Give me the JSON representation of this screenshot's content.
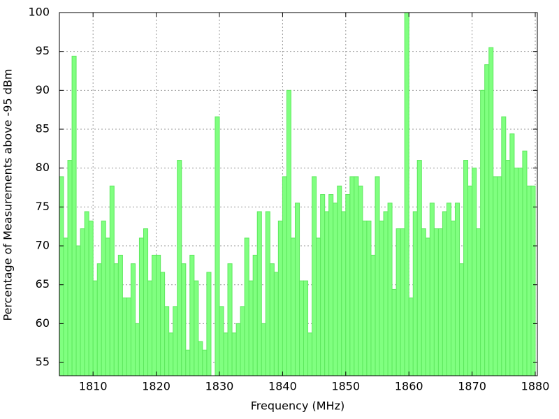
{
  "chart_data": {
    "type": "histogram",
    "xlabel": "Frequency (MHz)",
    "ylabel": "Percentage of Measurements above -95 dBm",
    "color": "#80ff80",
    "edgecolor": "#5ee85e",
    "grid": true,
    "xlim": [
      1804.67,
      1880.33
    ],
    "ylim": [
      53.3,
      100
    ],
    "xticks": [
      1810,
      1820,
      1830,
      1840,
      1850,
      1860,
      1870,
      1880
    ],
    "yticks": [
      55,
      60,
      65,
      70,
      75,
      80,
      85,
      90,
      95,
      100
    ],
    "bins": [
      1804.67,
      1805.33,
      1806,
      1806.67,
      1807.33,
      1808,
      1808.67,
      1809.33,
      1810,
      1810.67,
      1811.33,
      1812,
      1812.67,
      1813.33,
      1814,
      1814.67,
      1815.33,
      1816,
      1816.67,
      1817.33,
      1818,
      1818.67,
      1819.33,
      1820,
      1820.67,
      1821.33,
      1822,
      1822.67,
      1823.33,
      1824,
      1824.67,
      1825.33,
      1826,
      1826.67,
      1827.33,
      1828,
      1828.67,
      1829.33,
      1830,
      1830.67,
      1831.33,
      1832,
      1832.67,
      1833.33,
      1834,
      1834.67,
      1835.33,
      1836,
      1836.67,
      1837.33,
      1838,
      1838.67,
      1839.33,
      1840,
      1840.67,
      1841.33,
      1842,
      1842.67,
      1843.33,
      1844,
      1844.67,
      1845.33,
      1846,
      1846.67,
      1847.33,
      1848,
      1848.67,
      1849.33,
      1850,
      1850.67,
      1851.33,
      1852,
      1852.67,
      1853.33,
      1854,
      1854.67,
      1855.33,
      1856,
      1856.67,
      1857.33,
      1858,
      1858.67,
      1859.33,
      1860,
      1860.67,
      1861.33,
      1862,
      1862.67,
      1863.33,
      1864,
      1864.67,
      1865.33,
      1866,
      1866.67,
      1867.33,
      1868,
      1868.67,
      1869.33,
      1870,
      1870.67,
      1871.33,
      1872,
      1872.67,
      1873.33,
      1874,
      1874.67,
      1875.33,
      1876,
      1876.67,
      1877.33,
      1878,
      1878.67,
      1879.33,
      1880
    ],
    "values": [
      78.9,
      71,
      81,
      94.4,
      70,
      72.2,
      74.4,
      73.2,
      65.5,
      67.7,
      73.2,
      71,
      77.7,
      67.7,
      68.8,
      63.3,
      63.3,
      67.7,
      60,
      71,
      72.2,
      65.5,
      68.8,
      68.8,
      66.6,
      62.2,
      58.8,
      62.2,
      81,
      67.7,
      56.6,
      68.8,
      65.5,
      57.7,
      56.6,
      66.6,
      53.3,
      86.6,
      62.2,
      58.8,
      67.7,
      58.8,
      60,
      62.2,
      71,
      65.5,
      68.8,
      74.4,
      60,
      74.4,
      67.7,
      66.6,
      73.2,
      78.9,
      90,
      71,
      75.5,
      65.5,
      65.5,
      58.8,
      78.9,
      71,
      76.6,
      74.4,
      76.6,
      75.5,
      77.7,
      74.4,
      76.6,
      78.9,
      78.9,
      77.7,
      73.2,
      73.2,
      68.8,
      78.9,
      73.2,
      74.4,
      75.5,
      64.4,
      72.2,
      72.2,
      100,
      63.3,
      74.4,
      81,
      72.2,
      71,
      75.5,
      72.2,
      72.2,
      74.4,
      75.5,
      73.2,
      75.5,
      67.7,
      81,
      77.7,
      80,
      72.2,
      90,
      93.3,
      95.5,
      78.9,
      78.9,
      86.6,
      81,
      84.4,
      80,
      80,
      82.2,
      77.7,
      77.7
    ]
  }
}
